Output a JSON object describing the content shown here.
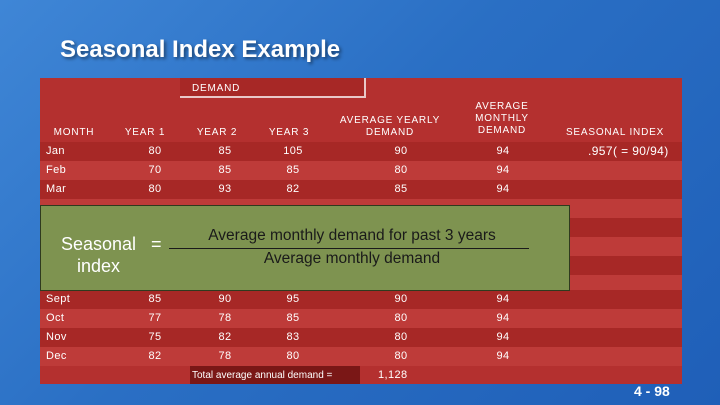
{
  "slide": {
    "title": "Seasonal Index Example",
    "page_number": "4 - 98"
  },
  "table": {
    "group_header": "DEMAND",
    "headers": {
      "month": "MONTH",
      "year1": "YEAR 1",
      "year2": "YEAR 2",
      "year3": "YEAR 3",
      "avg_yearly_line1": "AVERAGE YEARLY",
      "avg_yearly_line2": "DEMAND",
      "avg_monthly_line1": "AVERAGE",
      "avg_monthly_line2": "MONTHLY",
      "avg_monthly_line3": "DEMAND",
      "seasonal_index": "SEASONAL INDEX"
    },
    "rows": [
      {
        "month": "Jan",
        "y1": "80",
        "y2": "85",
        "y3": "105",
        "avg_yearly": "90",
        "avg_monthly": "94",
        "index": ".957( = 90/94)"
      },
      {
        "month": "Feb",
        "y1": "70",
        "y2": "85",
        "y3": "85",
        "avg_yearly": "80",
        "avg_monthly": "94",
        "index": ""
      },
      {
        "month": "Mar",
        "y1": "80",
        "y2": "93",
        "y3": "82",
        "avg_yearly": "85",
        "avg_monthly": "94",
        "index": ""
      },
      {
        "month": "Sept",
        "y1": "85",
        "y2": "90",
        "y3": "95",
        "avg_yearly": "90",
        "avg_monthly": "94",
        "index": ""
      },
      {
        "month": "Oct",
        "y1": "77",
        "y2": "78",
        "y3": "85",
        "avg_yearly": "80",
        "avg_monthly": "94",
        "index": ""
      },
      {
        "month": "Nov",
        "y1": "75",
        "y2": "82",
        "y3": "83",
        "avg_yearly": "80",
        "avg_monthly": "94",
        "index": ""
      },
      {
        "month": "Dec",
        "y1": "82",
        "y2": "78",
        "y3": "80",
        "avg_yearly": "80",
        "avg_monthly": "94",
        "index": ""
      }
    ],
    "total_label": "Total average annual demand =",
    "total_value": "1,128"
  },
  "formula": {
    "label_line1": "Seasonal",
    "label_line2": "index",
    "equals": "=",
    "numerator": "Average monthly demand for past 3 years",
    "denominator": "Average monthly demand"
  },
  "colors": {
    "background": "#2a6fc4",
    "table": "#b4302f",
    "overlay": "#7e9350"
  }
}
